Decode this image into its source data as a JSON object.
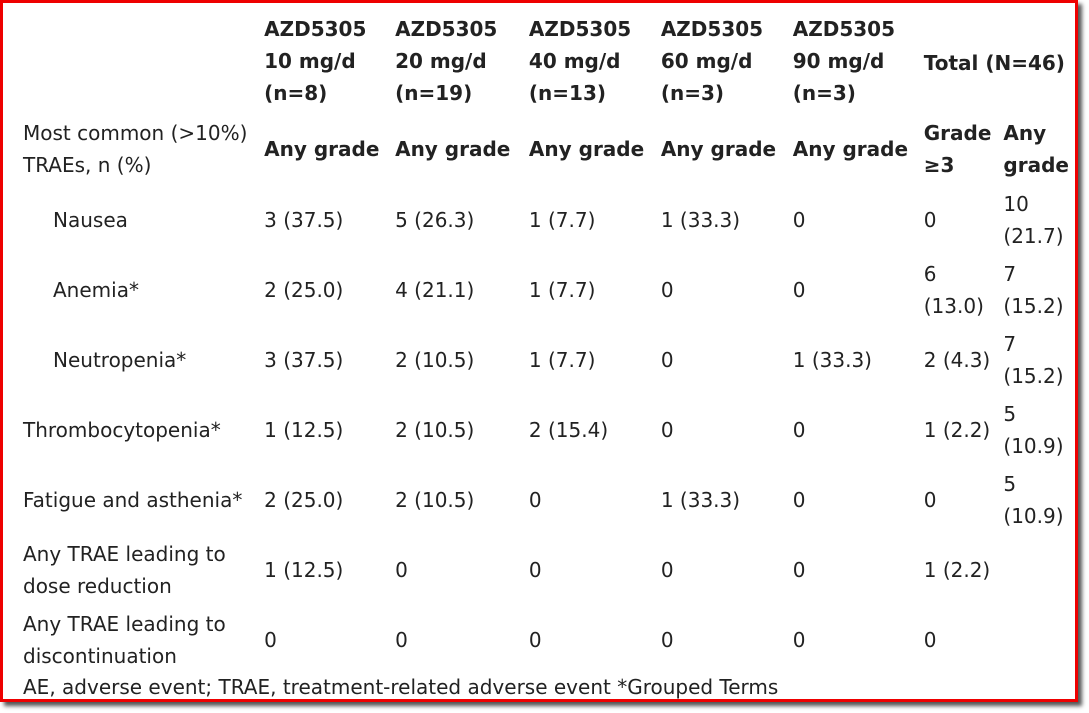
{
  "header": {
    "columns": [
      "AZD5305 10 mg/d (n=8)",
      "AZD5305 20 mg/d (n=19)",
      "AZD5305 40 mg/d (n=13)",
      "AZD5305 60 mg/d (n=3)",
      "AZD5305 90 mg/d (n=3)",
      "Total (N=46)"
    ],
    "row_label": "Most common (>10%) TRAEs, n (%)",
    "subheaders": [
      "Any grade",
      "Any grade",
      "Any grade",
      "Any grade",
      "Any grade",
      "Grade ≥3",
      "Any grade"
    ]
  },
  "table": {
    "rows": [
      [
        "Nausea",
        "3 (37.5)",
        "5 (26.3)",
        "1 (7.7)",
        "1 (33.3)",
        "0",
        "0",
        "10 (21.7)"
      ],
      [
        "Anemia*",
        "2 (25.0)",
        "4 (21.1)",
        "1 (7.7)",
        "0",
        "0",
        "6 (13.0)",
        "7 (15.2)"
      ],
      [
        "Neutropenia*",
        "3 (37.5)",
        "2 (10.5)",
        "1 (7.7)",
        "0",
        "1 (33.3)",
        "2 (4.3)",
        "7 (15.2)"
      ],
      [
        "Thrombocytopenia*",
        "1 (12.5)",
        "2 (10.5)",
        "2 (15.4)",
        "0",
        "0",
        "1 (2.2)",
        "5 (10.9)"
      ],
      [
        "Fatigue and asthenia*",
        "2 (25.0)",
        "2 (10.5)",
        "0",
        "1 (33.3)",
        "0",
        "0",
        "5 (10.9)"
      ],
      [
        "Any TRAE leading to dose reduction",
        "1 (12.5)",
        "0",
        "0",
        "0",
        "0",
        "1 (2.2)"
      ],
      [
        "Any TRAE leading to discontinuation",
        "0",
        "0",
        "0",
        "0",
        "0",
        "0"
      ]
    ]
  },
  "footnote": "AE, adverse event; TRAE, treatment-related adverse event *Grouped Terms"
}
